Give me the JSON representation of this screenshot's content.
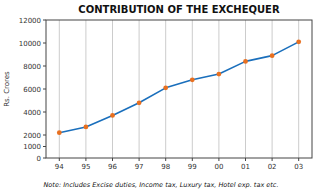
{
  "chart_data": {
    "type": "line",
    "title": "CONTRIBUTION OF THE EXCHEQUER",
    "ylabel": "Rs. Crores",
    "note": "Note: Includes Excise duties, Income tax, Luxury tax, Hotel exp. tax etc.",
    "categories": [
      "94",
      "95",
      "96",
      "97",
      "98",
      "99",
      "00",
      "01",
      "02",
      "03"
    ],
    "values": [
      2200,
      2700,
      3700,
      4800,
      6100,
      6800,
      7300,
      8400,
      8900,
      10100
    ],
    "color": "#1a6fbc",
    "colors": [
      "#e87020",
      "#e87020",
      "#e87020",
      "#e87020",
      "#e87020",
      "#e87020",
      "#e87020",
      "#e87020",
      "#e87020",
      "#e87020"
    ],
    "marker": "circle",
    "ylim": [
      0,
      12000
    ],
    "yticks": [
      0,
      1000,
      2000,
      4000,
      6000,
      8000,
      10000,
      12000
    ],
    "grid": true
  }
}
